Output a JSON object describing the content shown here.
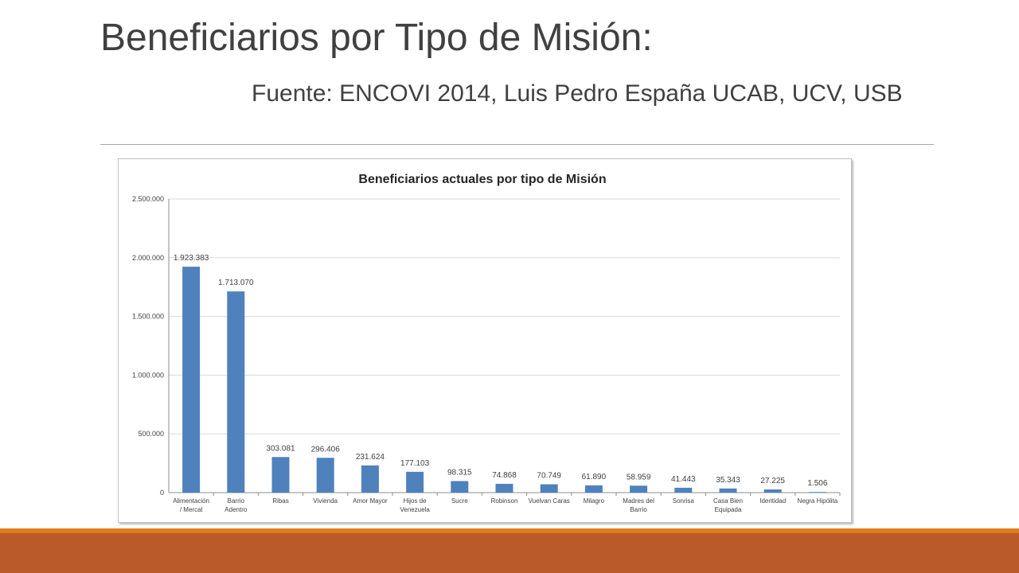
{
  "slide": {
    "title": "Beneficiarios por Tipo de Misión:",
    "subtitle": "Fuente: ENCOVI 2014, Luis Pedro España UCAB, UCV, USB"
  },
  "colors": {
    "bar": "#4f81bd",
    "grid": "#d9d9d9",
    "text": "#404040",
    "accent_orange": "#e07e1b",
    "footer": "#bb5a29"
  },
  "chart_data": {
    "type": "bar",
    "title": "Beneficiarios actuales por tipo de Misión",
    "xlabel": "",
    "ylabel": "",
    "ylim": [
      0,
      2500000
    ],
    "yticks": [
      0,
      500000,
      1000000,
      1500000,
      2000000,
      2500000
    ],
    "ytick_labels": [
      "0",
      "500.000",
      "1.000.000",
      "1.500.000",
      "2.000.000",
      "2.500.000"
    ],
    "grid": true,
    "categories": [
      [
        "Alimentación",
        "/ Mercal"
      ],
      [
        "Barrio",
        "Adentro"
      ],
      [
        "Ribas"
      ],
      [
        "Vivienda"
      ],
      [
        "Amor Mayor"
      ],
      [
        "Hijos de",
        "Venezuela"
      ],
      [
        "Sucre"
      ],
      [
        "Robinson"
      ],
      [
        "Vuelvan Caras"
      ],
      [
        "Milagro"
      ],
      [
        "Madres del",
        "Barrio"
      ],
      [
        "Sonrisa"
      ],
      [
        "Casa Bien",
        "Equipada"
      ],
      [
        "Identidad"
      ],
      [
        "Negra Hipólita"
      ]
    ],
    "values": [
      1923383,
      1713070,
      303081,
      296406,
      231624,
      177103,
      98315,
      74868,
      70749,
      61890,
      58959,
      41443,
      35343,
      27225,
      1506
    ],
    "value_labels": [
      "1.923.383",
      "1.713.070",
      "303.081",
      "296.406",
      "231.624",
      "177.103",
      "98.315",
      "74.868",
      "70.749",
      "61.890",
      "58.959",
      "41.443",
      "35.343",
      "27.225",
      "1.506"
    ]
  }
}
